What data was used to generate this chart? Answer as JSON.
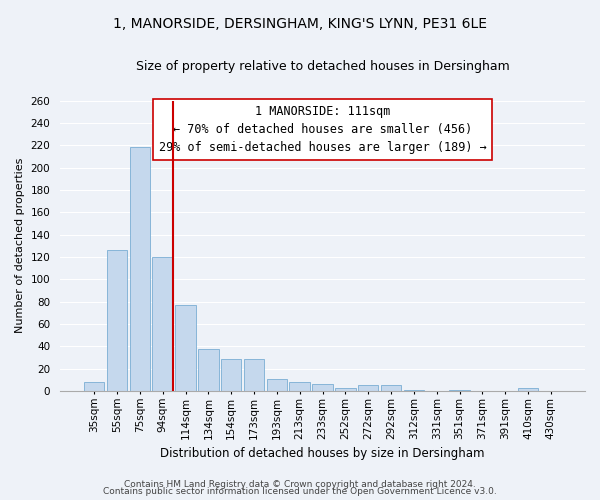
{
  "title1": "1, MANORSIDE, DERSINGHAM, KING'S LYNN, PE31 6LE",
  "title2": "Size of property relative to detached houses in Dersingham",
  "xlabel": "Distribution of detached houses by size in Dersingham",
  "ylabel": "Number of detached properties",
  "categories": [
    "35sqm",
    "55sqm",
    "75sqm",
    "94sqm",
    "114sqm",
    "134sqm",
    "154sqm",
    "173sqm",
    "193sqm",
    "213sqm",
    "233sqm",
    "252sqm",
    "272sqm",
    "292sqm",
    "312sqm",
    "331sqm",
    "351sqm",
    "371sqm",
    "391sqm",
    "410sqm",
    "430sqm"
  ],
  "values": [
    8,
    126,
    218,
    120,
    77,
    38,
    29,
    29,
    11,
    8,
    6,
    3,
    5,
    5,
    1,
    0,
    1,
    0,
    0,
    3,
    0
  ],
  "bar_color": "#c5d8ed",
  "bar_edge_color": "#7aaed4",
  "vline_x_index": 3,
  "vline_color": "#cc0000",
  "annotation_line1": "1 MANORSIDE: 111sqm",
  "annotation_line2": "← 70% of detached houses are smaller (456)",
  "annotation_line3": "29% of semi-detached houses are larger (189) →",
  "annotation_box_color": "white",
  "annotation_box_edge": "#cc0000",
  "footer1": "Contains HM Land Registry data © Crown copyright and database right 2024.",
  "footer2": "Contains public sector information licensed under the Open Government Licence v3.0.",
  "bg_color": "#eef2f8",
  "grid_color": "#ffffff",
  "ylim": [
    0,
    260
  ],
  "title1_fontsize": 10,
  "title2_fontsize": 9,
  "xlabel_fontsize": 8.5,
  "ylabel_fontsize": 8,
  "tick_fontsize": 7.5,
  "annotation_fontsize": 8.5,
  "footer_fontsize": 6.5
}
